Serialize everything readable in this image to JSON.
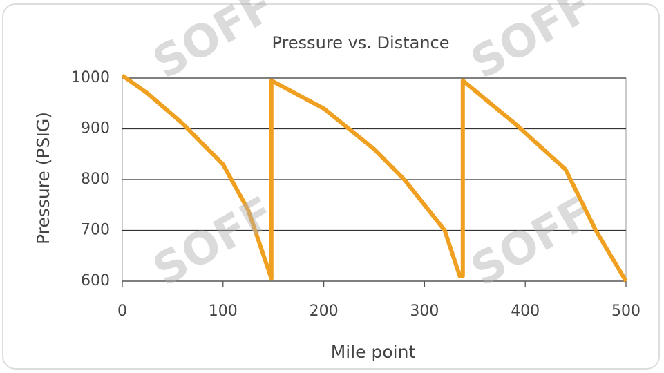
{
  "chart_data": {
    "type": "line",
    "title": "Pressure vs. Distance",
    "x_label": "Mile point",
    "y_label": "Pressure (PSIG)",
    "x": [
      0,
      25,
      60,
      100,
      125,
      148,
      148,
      200,
      250,
      280,
      320,
      335,
      338,
      338,
      390,
      440,
      470,
      500
    ],
    "values": [
      1005,
      970,
      910,
      830,
      740,
      605,
      995,
      940,
      860,
      800,
      700,
      610,
      610,
      995,
      910,
      820,
      700,
      600
    ],
    "color": "#f0a020",
    "xlim": [
      0,
      500
    ],
    "xticks": [
      0,
      100,
      200,
      300,
      400,
      500
    ],
    "ylim": [
      600,
      1000
    ],
    "yticks": [
      600,
      700,
      800,
      900,
      1000
    ],
    "grid": true,
    "watermark": "SOFF"
  }
}
